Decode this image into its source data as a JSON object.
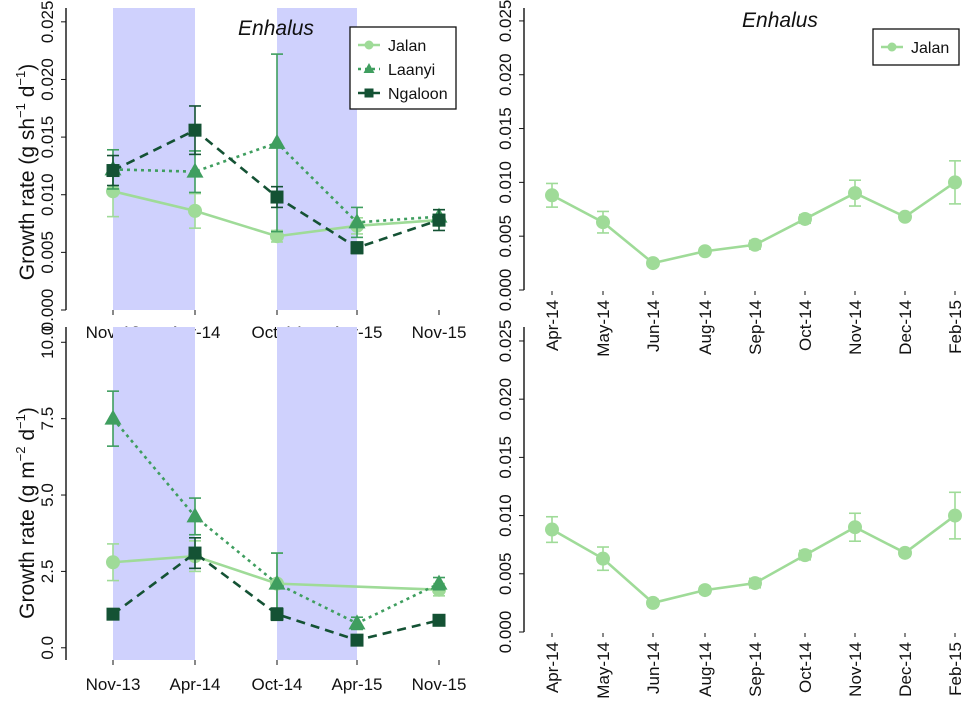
{
  "colors": {
    "jalan": "#9fdb98",
    "laanyi": "#3f9e5f",
    "ngaloon": "#145234",
    "shade": "#cfd1fd"
  },
  "series_styles": {
    "Jalan": {
      "color": "#9fdb98",
      "marker": "circle",
      "dash": "solid"
    },
    "Laanyi": {
      "color": "#3f9e5f",
      "marker": "triangle",
      "dash": "dotted"
    },
    "Ngaloon": {
      "color": "#145234",
      "marker": "square",
      "dash": "dashed"
    }
  },
  "panel_titles": {
    "top_left": "Enhalus",
    "top_right": "Enhalus"
  },
  "axis_labels": {
    "top_ylabel": "Growth rate (g  sh",
    "top_ylabel_sup1": "−1",
    "top_ylabel_mid": " d",
    "top_ylabel_sup2": "−1",
    "top_ylabel_end": ")",
    "bottom_ylabel": "Growth rate (g  m",
    "bottom_ylabel_sup1": "−2",
    "bottom_ylabel_mid": " d",
    "bottom_ylabel_sup2": "−1",
    "bottom_ylabel_end": ")"
  },
  "chart_data": [
    {
      "panel": "top-left",
      "type": "line",
      "title": "Enhalus",
      "ylabel": "Growth rate (g sh−1 d−1)",
      "xlabel": "",
      "categories": [
        "Nov-13",
        "Apr-14",
        "Oct-14",
        "Apr-15",
        "Nov-15"
      ],
      "yticks": [
        "0.000",
        "0.005",
        "0.010",
        "0.015",
        "0.020",
        "0.025"
      ],
      "ylim": [
        0.0,
        0.0262
      ],
      "shaded_intervals": [
        [
          "Nov-13",
          "Apr-14"
        ],
        [
          "Oct-14",
          "Apr-15"
        ]
      ],
      "legend": {
        "position": "top-right",
        "entries": [
          "Jalan",
          "Laanyi",
          "Ngaloon"
        ]
      },
      "grid": false,
      "series": [
        {
          "name": "Jalan",
          "values": [
            0.0103,
            0.0086,
            0.0064,
            0.0073,
            0.0078
          ],
          "err": [
            0.0022,
            0.0015,
            0.0005,
            0.0007,
            0.0005
          ]
        },
        {
          "name": "Laanyi",
          "values": [
            0.0122,
            0.012,
            0.0145,
            0.0076,
            0.0081
          ],
          "err": [
            0.0017,
            0.0018,
            0.0077,
            0.0013,
            0.0006
          ]
        },
        {
          "name": "Ngaloon",
          "values": [
            0.0121,
            0.0156,
            0.0098,
            0.0054,
            0.0078
          ],
          "err": [
            0.0013,
            0.0021,
            0.0009,
            0.0005,
            0.0009
          ]
        }
      ]
    },
    {
      "panel": "top-right",
      "type": "line",
      "title": "Enhalus",
      "ylabel": "",
      "xlabel": "",
      "categories": [
        "Apr-14",
        "May-14",
        "Jun-14",
        "Aug-14",
        "Sep-14",
        "Oct-14",
        "Nov-14",
        "Dec-14",
        "Feb-15"
      ],
      "yticks": [
        "0.000",
        "0.005",
        "0.010",
        "0.015",
        "0.020",
        "0.025"
      ],
      "ylim": [
        0.0,
        0.0262
      ],
      "legend": {
        "position": "top-right",
        "entries": [
          "Jalan"
        ]
      },
      "grid": false,
      "series": [
        {
          "name": "Jalan",
          "values": [
            0.0088,
            0.0063,
            0.0025,
            0.0036,
            0.0042,
            0.0066,
            0.009,
            0.0068,
            0.01
          ],
          "err": [
            0.0011,
            0.001,
            0.0003,
            0.0003,
            0.0004,
            0.0004,
            0.0012,
            0.0003,
            0.002
          ]
        }
      ]
    },
    {
      "panel": "bottom-left",
      "type": "line",
      "title": "",
      "ylabel": "Growth rate (g m−2 d−1)",
      "xlabel": "",
      "categories": [
        "Nov-13",
        "Apr-14",
        "Oct-14",
        "Apr-15",
        "Nov-15"
      ],
      "yticks": [
        "0.0",
        "2.5",
        "5.0",
        "7.5",
        "10.0"
      ],
      "ylim": [
        -0.4,
        10.5
      ],
      "shaded_intervals": [
        [
          "Nov-13",
          "Apr-14"
        ],
        [
          "Oct-14",
          "Apr-15"
        ]
      ],
      "grid": false,
      "series": [
        {
          "name": "Jalan",
          "values": [
            2.8,
            3.0,
            2.1,
            null,
            1.9
          ],
          "err": [
            0.6,
            0.5,
            1.0,
            null,
            0.2
          ]
        },
        {
          "name": "Laanyi",
          "values": [
            7.5,
            4.3,
            2.1,
            0.8,
            2.1
          ],
          "err": [
            0.9,
            0.6,
            1.0,
            0.2,
            0.2
          ]
        },
        {
          "name": "Ngaloon",
          "values": [
            1.1,
            3.1,
            1.1,
            0.25,
            0.9
          ],
          "err": [
            0.1,
            0.5,
            0.2,
            0.1,
            0.1
          ]
        }
      ]
    },
    {
      "panel": "bottom-right",
      "type": "line",
      "title": "",
      "ylabel": "",
      "xlabel": "",
      "categories": [
        "Apr-14",
        "May-14",
        "Jun-14",
        "Aug-14",
        "Sep-14",
        "Oct-14",
        "Nov-14",
        "Dec-14",
        "Feb-15"
      ],
      "yticks": [
        "0.000",
        "0.005",
        "0.010",
        "0.015",
        "0.020",
        "0.025"
      ],
      "ylim": [
        0.0,
        0.0262
      ],
      "grid": false,
      "series": [
        {
          "name": "Jalan",
          "values": [
            0.0088,
            0.0063,
            0.0025,
            0.0036,
            0.0042,
            0.0066,
            0.009,
            0.0068,
            0.01
          ],
          "err": [
            0.0011,
            0.001,
            0.0003,
            0.0003,
            0.0004,
            0.0004,
            0.0012,
            0.0003,
            0.002
          ]
        }
      ]
    }
  ]
}
